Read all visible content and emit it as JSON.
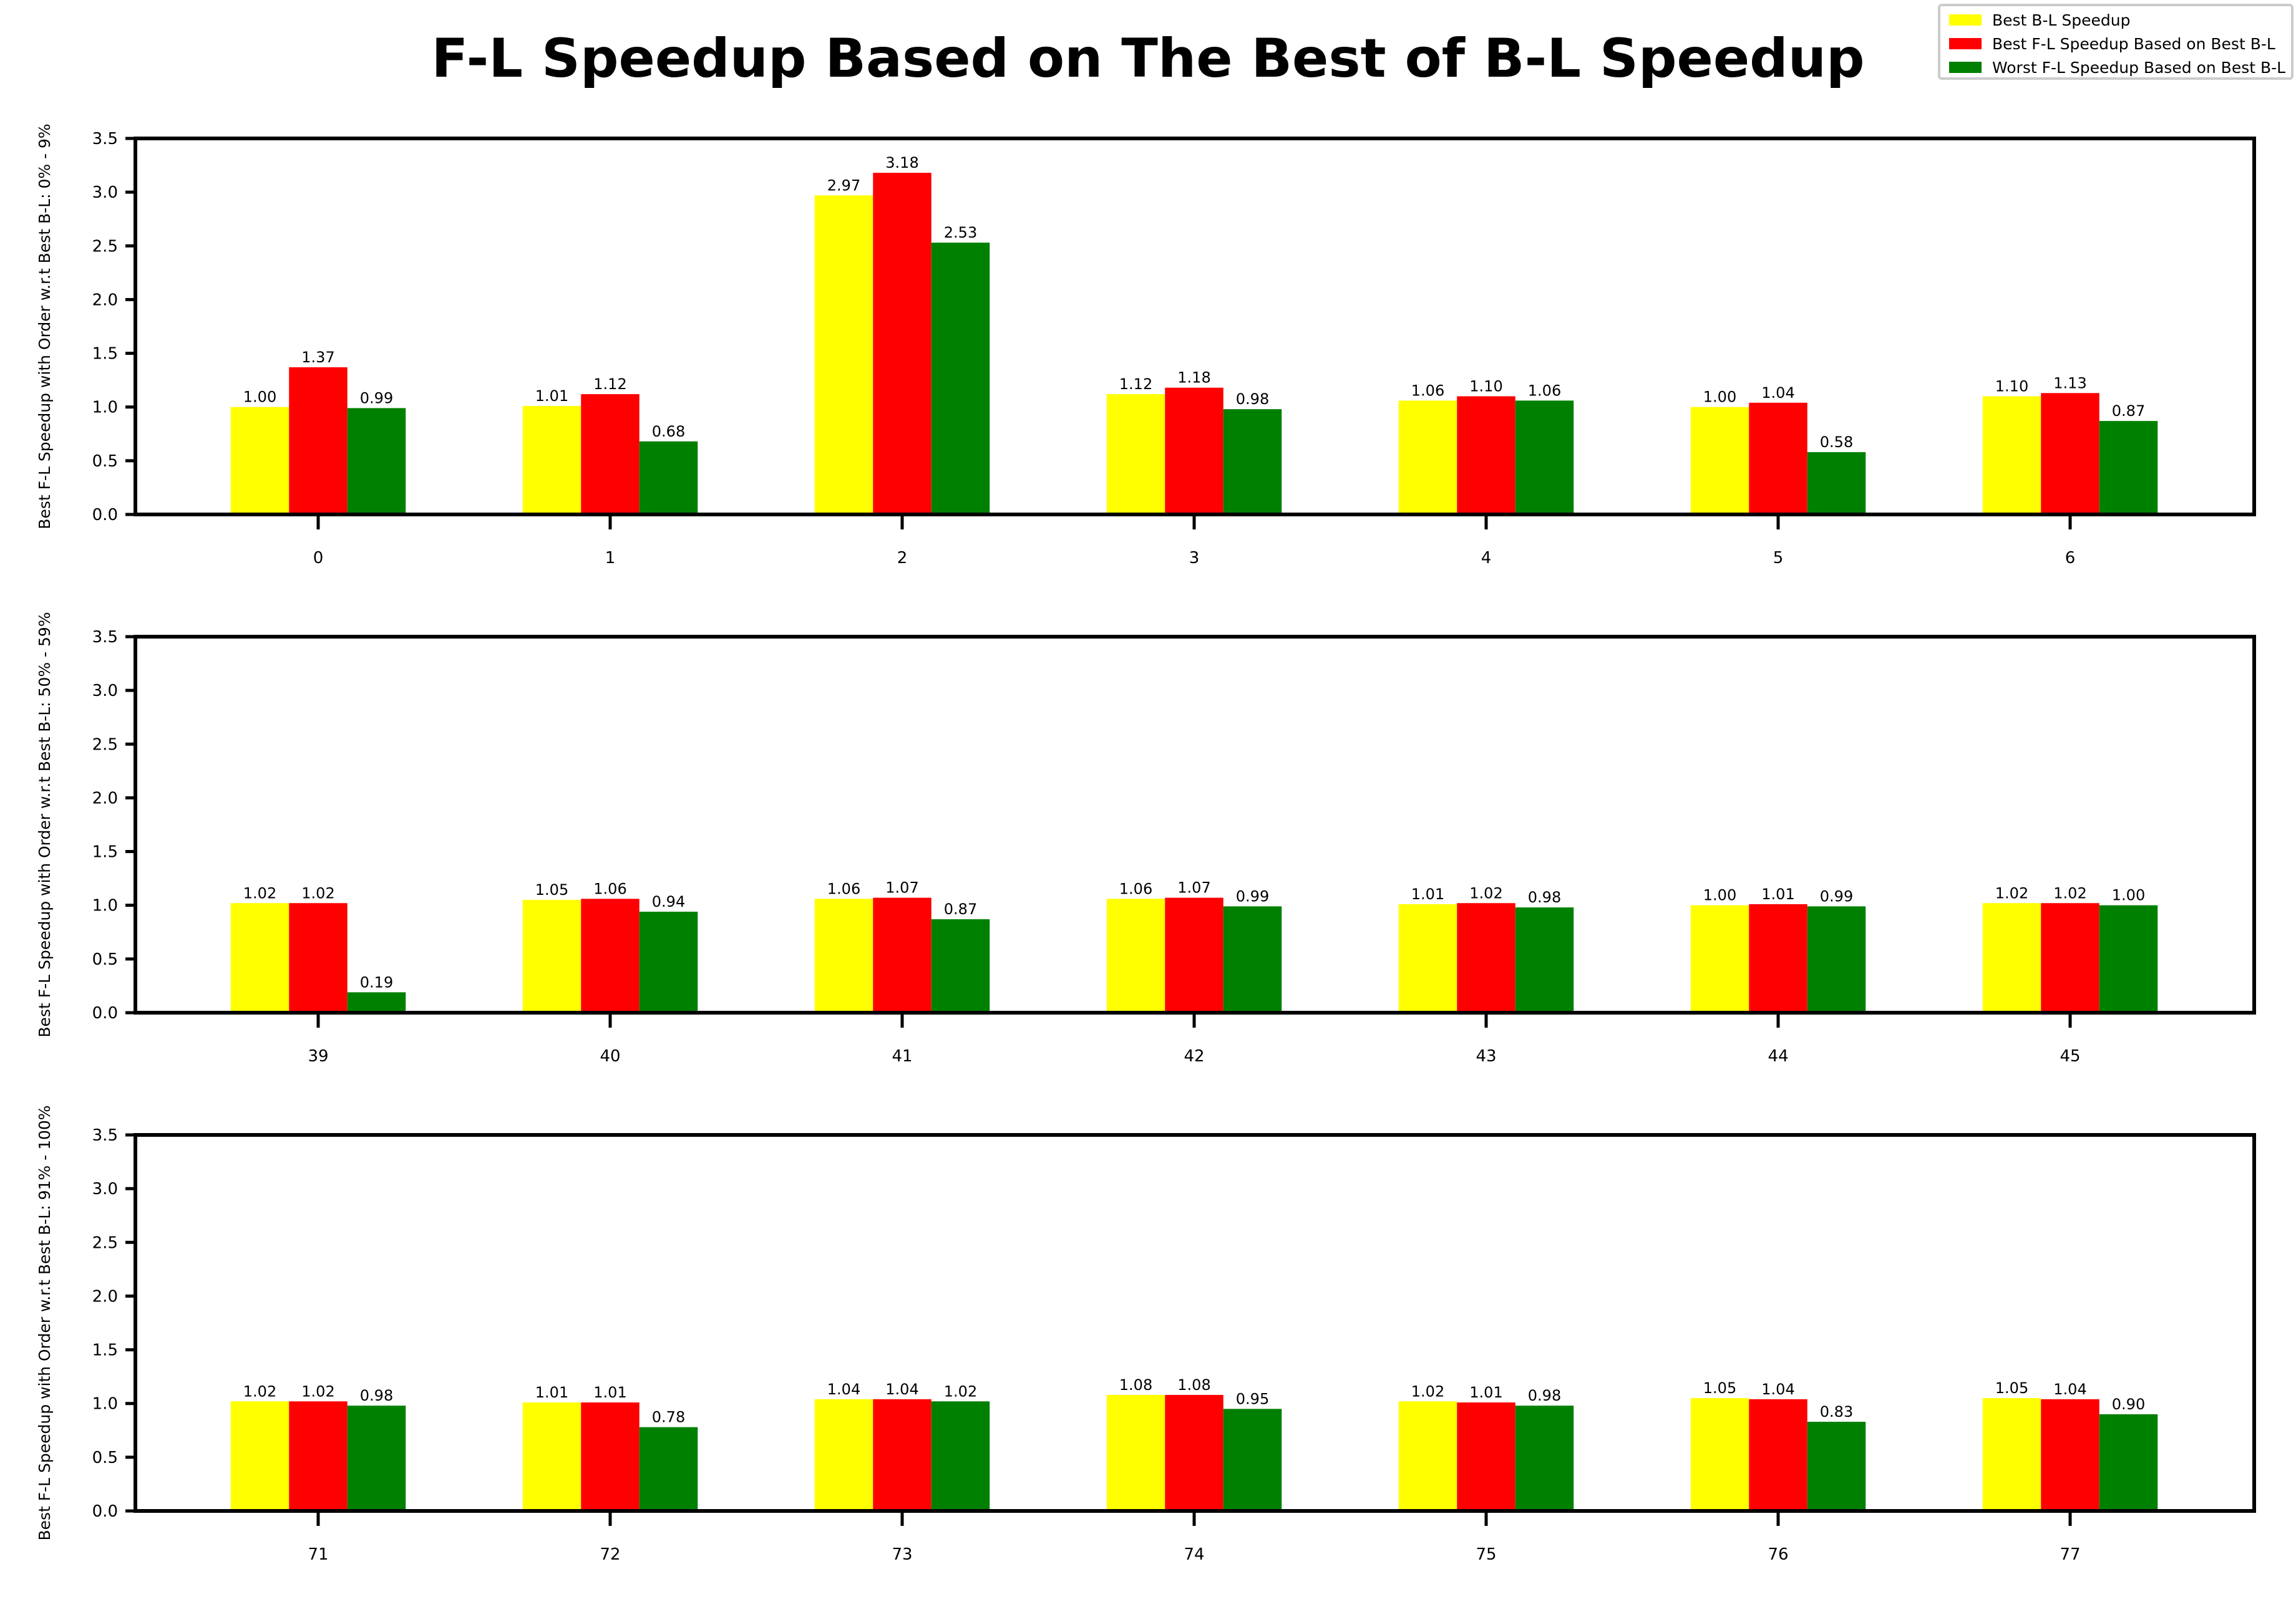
{
  "chart_data": {
    "type": "bar",
    "title": "F-L Speedup Based on The Best of B-L Speedup",
    "legend": {
      "placement": "top-right",
      "entries": [
        {
          "name": "Best B-L Speedup",
          "color": "#ffff00"
        },
        {
          "name": "Best F-L Speedup Based on Best B-L",
          "color": "#ff0000"
        },
        {
          "name": "Worst F-L Speedup Based on Best B-L",
          "color": "#008000"
        }
      ]
    },
    "ylim": [
      0,
      3.5
    ],
    "yticks": [
      "0.0",
      "0.5",
      "1.0",
      "1.5",
      "2.0",
      "2.5",
      "3.0",
      "3.5"
    ],
    "grid": false,
    "panels": [
      {
        "ylabel": "Best F-L Speedup with Order w.r.t Best B-L: 0% - 9%",
        "categories": [
          "0",
          "1",
          "2",
          "3",
          "4",
          "5",
          "6"
        ],
        "series": [
          {
            "name": "Best B-L Speedup",
            "values": [
              1.0,
              1.01,
              2.97,
              1.12,
              1.06,
              1.0,
              1.1
            ],
            "labels": [
              "1.00",
              "1.01",
              "2.97",
              "1.12",
              "1.06",
              "1.00",
              "1.10"
            ]
          },
          {
            "name": "Best F-L Speedup Based on Best B-L",
            "values": [
              1.37,
              1.12,
              3.18,
              1.18,
              1.1,
              1.04,
              1.13
            ],
            "labels": [
              "1.37",
              "1.12",
              "3.18",
              "1.18",
              "1.10",
              "1.04",
              "1.13"
            ]
          },
          {
            "name": "Worst F-L Speedup Based on Best B-L",
            "values": [
              0.99,
              0.68,
              2.53,
              0.98,
              1.06,
              0.58,
              0.87
            ],
            "labels": [
              "0.99",
              "0.68",
              "2.53",
              "0.98",
              "1.06",
              "0.58",
              "0.87"
            ]
          }
        ]
      },
      {
        "ylabel": "Best F-L Speedup with Order w.r.t Best B-L: 50% - 59%",
        "categories": [
          "39",
          "40",
          "41",
          "42",
          "43",
          "44",
          "45"
        ],
        "series": [
          {
            "name": "Best B-L Speedup",
            "values": [
              1.02,
              1.05,
              1.06,
              1.06,
              1.01,
              1.0,
              1.02
            ],
            "labels": [
              "1.02",
              "1.05",
              "1.06",
              "1.06",
              "1.01",
              "1.00",
              "1.02"
            ]
          },
          {
            "name": "Best F-L Speedup Based on Best B-L",
            "values": [
              1.02,
              1.06,
              1.07,
              1.07,
              1.02,
              1.01,
              1.02
            ],
            "labels": [
              "1.02",
              "1.06",
              "1.07",
              "1.07",
              "1.02",
              "1.01",
              "1.02"
            ]
          },
          {
            "name": "Worst F-L Speedup Based on Best B-L",
            "values": [
              0.19,
              0.94,
              0.87,
              0.99,
              0.98,
              0.99,
              1.0
            ],
            "labels": [
              "0.19",
              "0.94",
              "0.87",
              "0.99",
              "0.98",
              "0.99",
              "1.00"
            ]
          }
        ]
      },
      {
        "ylabel": "Best F-L Speedup with Order w.r.t Best B-L: 91% - 100%",
        "categories": [
          "71",
          "72",
          "73",
          "74",
          "75",
          "76",
          "77"
        ],
        "series": [
          {
            "name": "Best B-L Speedup",
            "values": [
              1.02,
              1.01,
              1.04,
              1.08,
              1.02,
              1.05,
              1.05
            ],
            "labels": [
              "1.02",
              "1.01",
              "1.04",
              "1.08",
              "1.02",
              "1.05",
              "1.05"
            ]
          },
          {
            "name": "Best F-L Speedup Based on Best B-L",
            "values": [
              1.02,
              1.01,
              1.04,
              1.08,
              1.01,
              1.04,
              1.04
            ],
            "labels": [
              "1.02",
              "1.01",
              "1.04",
              "1.08",
              "1.01",
              "1.04",
              "1.04"
            ]
          },
          {
            "name": "Worst F-L Speedup Based on Best B-L",
            "values": [
              0.98,
              0.78,
              1.02,
              0.95,
              0.98,
              0.83,
              0.9
            ],
            "labels": [
              "0.98",
              "0.78",
              "1.02",
              "0.95",
              "0.98",
              "0.83",
              "0.90"
            ]
          }
        ]
      }
    ]
  }
}
